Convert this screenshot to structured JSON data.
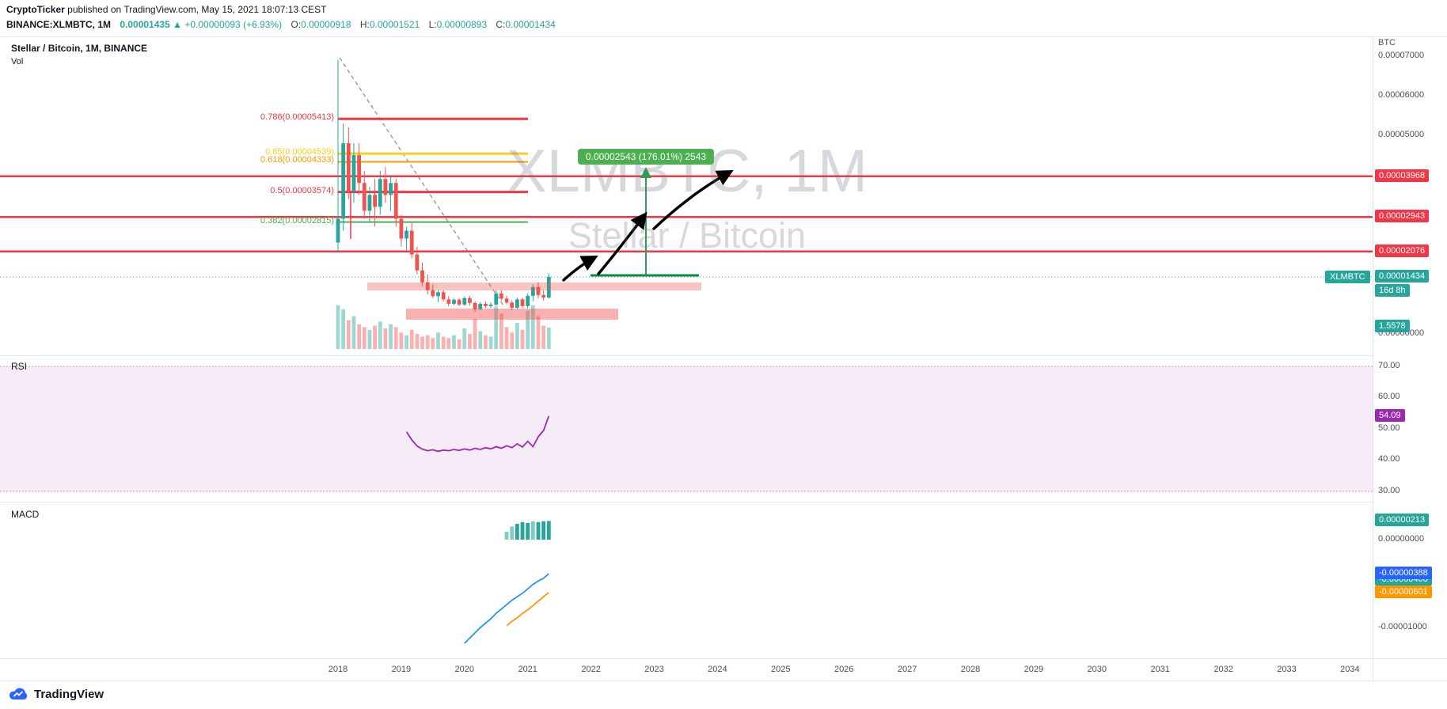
{
  "header": {
    "author": "CryptoTicker",
    "published": " published on TradingView.com, May 15, 2021 18:07:13 CEST",
    "symbol": "BINANCE:XLMBTC, 1M",
    "last": "0.00001435",
    "arrow": "▲",
    "change": "+0.00000093 (+6.93%)",
    "ohlc": [
      {
        "k": "O:",
        "v": "0.00000918"
      },
      {
        "k": "H:",
        "v": "0.00001521"
      },
      {
        "k": "L:",
        "v": "0.00000893"
      },
      {
        "k": "C:",
        "v": "0.00001434"
      }
    ]
  },
  "legend": {
    "main": "Stellar / Bitcoin, 1M, BINANCE",
    "vol": "Vol",
    "rsi": "RSI",
    "macd": "MACD"
  },
  "watermark": {
    "line1": "XLMBTC, 1M",
    "line2": "Stellar / Bitcoin"
  },
  "measure": {
    "label": "0.00002543 (176.01%) 2543"
  },
  "fib": [
    {
      "label": "0.786(0.00005413)",
      "price": 5413,
      "color": "#f23645",
      "width": 3
    },
    {
      "label": "0.65(0.00004539)",
      "price": 4539,
      "color": "#f8cf1c",
      "width": 3
    },
    {
      "label": "0.618(0.00004333)",
      "price": 4333,
      "color": "#ff9800",
      "width": 2
    },
    {
      "label": "0.5(0.00003574)",
      "price": 3574,
      "color": "#f23645",
      "width": 3
    },
    {
      "label": "0.382(0.00002815)",
      "price": 2815,
      "color": "#4caf50",
      "width": 2
    }
  ],
  "levels": [
    {
      "label": "0.00003968",
      "price": 3968
    },
    {
      "label": "0.00002943",
      "price": 2943
    },
    {
      "label": "0.00002076",
      "price": 2076
    }
  ],
  "axis": {
    "unit": "BTC",
    "main_ticks": [
      {
        "label": "0.00007000",
        "price": 7000
      },
      {
        "label": "0.00006000",
        "price": 6000
      },
      {
        "label": "0.00005000",
        "price": 5000
      },
      {
        "label": "0.00000000",
        "price": 0
      }
    ],
    "price_chip": {
      "symbol": "XLMBTC",
      "label": "0.00001434",
      "price": 1434,
      "countdown": "16d 8h",
      "color": "#26a69a"
    },
    "vol_chip": {
      "label": "1.5578",
      "color": "#26a69a"
    },
    "rsi_ticks": [
      {
        "label": "70.00",
        "v": 70
      },
      {
        "label": "60.00",
        "v": 60
      },
      {
        "label": "50.00",
        "v": 50
      },
      {
        "label": "40.00",
        "v": 40
      },
      {
        "label": "30.00",
        "v": 30
      }
    ],
    "rsi_chip": {
      "label": "54.09",
      "v": 54.09,
      "color": "#9c27b0"
    },
    "macd_ticks": [
      {
        "label": "0.00000000",
        "v": 0
      },
      {
        "label": "-0.00001000",
        "v": -10
      }
    ],
    "macd_chips": [
      {
        "label": "0.00000213",
        "v": 2.13,
        "color": "#26a69a",
        "z": 3
      },
      {
        "label": "-0.00000388",
        "v": -3.88,
        "color": "#2962ff",
        "z": 4
      },
      {
        "label": "-0.00000460",
        "v": -4.6,
        "color": "#26a69a",
        "z": 2
      },
      {
        "label": "-0.00000601",
        "v": -6.01,
        "color": "#ff9800",
        "z": 4
      }
    ]
  },
  "time_axis": {
    "years": [
      "2018",
      "2019",
      "2020",
      "2021",
      "2022",
      "2023",
      "2024",
      "2025",
      "2026",
      "2027",
      "2028",
      "2029",
      "2030",
      "2031",
      "2032",
      "2033",
      "2034"
    ]
  },
  "footer": {
    "brand": "TradingView"
  },
  "colors": {
    "up": "#26a69a",
    "down": "#ef5350",
    "level_red": "#f23645",
    "rsi_line": "#9c27b0",
    "macd_line": "#2196f3",
    "signal_line": "#ff9800",
    "measure_green": "#2e9e4f",
    "support_green": "#128a3f"
  },
  "chart_data": [
    {
      "type": "candlestick",
      "title": "Stellar / Bitcoin, 1M, BINANCE",
      "x_start": "2018-01",
      "x_interval": "1 month",
      "price_unit": "BTC",
      "value_scale": 1e-08,
      "ylim": [
        0,
        7500
      ],
      "candles": [
        [
          2300,
          6900,
          2100,
          2900
        ],
        [
          2900,
          5300,
          2600,
          4800
        ],
        [
          4800,
          5200,
          3400,
          3600
        ],
        [
          3600,
          4800,
          3300,
          4500
        ],
        [
          4500,
          4800,
          3500,
          3800
        ],
        [
          3800,
          4100,
          2900,
          3100
        ],
        [
          3100,
          3700,
          2800,
          3500
        ],
        [
          3500,
          3900,
          2700,
          3200
        ],
        [
          3200,
          4100,
          3000,
          3900
        ],
        [
          3900,
          4200,
          3300,
          3500
        ],
        [
          3500,
          4000,
          3100,
          3800
        ],
        [
          3800,
          3900,
          2700,
          2900
        ],
        [
          2900,
          3000,
          2200,
          2400
        ],
        [
          2400,
          2700,
          2100,
          2600
        ],
        [
          2600,
          2800,
          1900,
          2000
        ],
        [
          2000,
          2200,
          1500,
          1600
        ],
        [
          1600,
          1800,
          1200,
          1300
        ],
        [
          1300,
          1500,
          1000,
          1100
        ],
        [
          1100,
          1250,
          900,
          950
        ],
        [
          950,
          1100,
          800,
          1050
        ],
        [
          1050,
          1100,
          820,
          870
        ],
        [
          870,
          950,
          700,
          760
        ],
        [
          760,
          900,
          720,
          860
        ],
        [
          860,
          900,
          700,
          740
        ],
        [
          740,
          940,
          700,
          900
        ],
        [
          900,
          950,
          720,
          780
        ],
        [
          780,
          820,
          560,
          620
        ],
        [
          620,
          800,
          600,
          760
        ],
        [
          760,
          820,
          660,
          700
        ],
        [
          700,
          790,
          650,
          740
        ],
        [
          740,
          1100,
          700,
          1020
        ],
        [
          1020,
          1100,
          840,
          890
        ],
        [
          890,
          960,
          740,
          790
        ],
        [
          790,
          850,
          600,
          660
        ],
        [
          660,
          920,
          620,
          870
        ],
        [
          870,
          910,
          650,
          700
        ],
        [
          700,
          1020,
          640,
          960
        ],
        [
          960,
          1250,
          820,
          1180
        ],
        [
          1180,
          1300,
          900,
          980
        ],
        [
          980,
          1100,
          840,
          918
        ],
        [
          918,
          1521,
          893,
          1434
        ]
      ],
      "volumes": [
        3.2,
        2.9,
        2.1,
        2.4,
        1.8,
        1.6,
        1.4,
        1.7,
        2.0,
        1.5,
        1.8,
        1.6,
        1.2,
        1.0,
        1.4,
        1.1,
        0.9,
        1.0,
        0.8,
        1.2,
        0.9,
        0.8,
        1.0,
        0.7,
        1.5,
        1.1,
        2.2,
        1.3,
        1.0,
        0.9,
        3.1,
        2.6,
        1.6,
        1.2,
        1.9,
        1.4,
        2.8,
        3.2,
        2.4,
        1.7,
        1.5578
      ]
    },
    {
      "type": "line",
      "title": "RSI",
      "start_index": 13,
      "values": [
        49,
        46.5,
        44.5,
        43.5,
        43,
        43.3,
        42.8,
        43.2,
        43,
        43.4,
        43.1,
        43.6,
        43.2,
        43.8,
        43.4,
        44,
        43.6,
        44.3,
        43.8,
        44.6,
        44,
        45.2,
        44.2,
        46,
        44.3,
        47.5,
        49.5,
        54.09
      ],
      "bands": [
        70,
        30
      ],
      "ylim": [
        25,
        75
      ],
      "last": 54.09
    },
    {
      "type": "bar",
      "title": "MACD",
      "value_scale": 1e-06,
      "hist_start": 32,
      "hist": [
        0.9,
        1.5,
        1.8,
        2.0,
        1.9,
        2.1,
        2.0,
        2.1,
        2.13
      ],
      "hist_light": [
        true,
        true,
        false,
        false,
        false,
        true,
        false,
        false,
        false
      ],
      "line_start": 24,
      "macd_line": [
        -11.8,
        -11.2,
        -10.6,
        -10,
        -9.5,
        -9,
        -8.4,
        -7.9,
        -7.4,
        -6.9,
        -6.5,
        -6.1,
        -5.6,
        -5.1,
        -4.7,
        -4.4,
        -3.88
      ],
      "signal_start": 32,
      "signal_line": [
        -9.8,
        -9.3,
        -8.9,
        -8.4,
        -8,
        -7.5,
        -7,
        -6.5,
        -6.01
      ],
      "last_hist": 2.13,
      "last_macd": -3.88,
      "last_signal": -6.01
    }
  ]
}
